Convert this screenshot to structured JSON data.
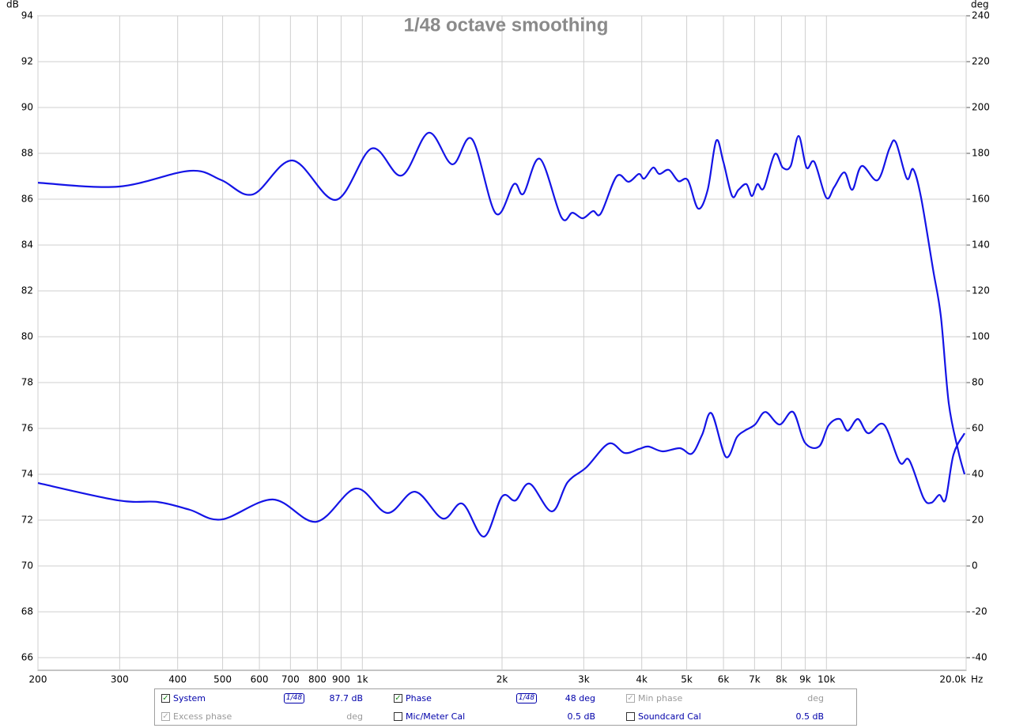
{
  "chart_data": {
    "type": "line",
    "title": "1/48 octave smoothing",
    "y_label": "dB",
    "y2_label": "deg",
    "x_label": "Hz",
    "log_x": true,
    "grid": true,
    "xlim": [
      200,
      20000
    ],
    "xticks": [
      200,
      300,
      400,
      500,
      600,
      700,
      800,
      900,
      {
        "value": 1000,
        "label": "1k"
      },
      {
        "value": 2000,
        "label": "2k"
      },
      {
        "value": 3000,
        "label": "3k"
      },
      {
        "value": 4000,
        "label": "4k"
      },
      {
        "value": 5000,
        "label": "5k"
      },
      {
        "value": 6000,
        "label": "6k"
      },
      {
        "value": 7000,
        "label": "7k"
      },
      {
        "value": 8000,
        "label": "8k"
      },
      {
        "value": 9000,
        "label": "9k"
      },
      {
        "value": 10000,
        "label": "10k"
      },
      {
        "value": 20000,
        "label": "20.0k"
      }
    ],
    "ylim": [
      65.45,
      94
    ],
    "yticks": [
      66,
      68,
      70,
      72,
      74,
      76,
      78,
      80,
      82,
      84,
      86,
      88,
      90,
      92,
      94
    ],
    "y2lim": [
      -45.5,
      240
    ],
    "y2ticks": [
      -40,
      -20,
      0,
      20,
      40,
      60,
      80,
      100,
      120,
      140,
      160,
      180,
      200,
      220,
      240
    ],
    "series": [
      {
        "name": "System",
        "color": "#1414e6",
        "x": [
          200,
          298,
          425,
          497,
          581,
          707,
          877,
          1047,
          1215,
          1389,
          1562,
          1723,
          1938,
          2122,
          2224,
          2414,
          2685,
          2836,
          2984,
          3140,
          3266,
          3532,
          3748,
          3942,
          4051,
          4230,
          4365,
          4576,
          4797,
          5028,
          5292,
          5548,
          5789,
          5998,
          6263,
          6464,
          6722,
          6908,
          7100,
          7328,
          7740,
          8051,
          8374,
          8709,
          9058,
          9420,
          9989,
          10390,
          10930,
          11370,
          11910,
          12890,
          13670,
          14110,
          14900,
          15380,
          15990,
          16960,
          17640,
          18350,
          19230,
          19840
        ],
        "values": [
          86.72,
          86.55,
          87.24,
          86.83,
          86.21,
          87.69,
          85.97,
          88.21,
          87.03,
          88.9,
          87.52,
          88.62,
          85.38,
          86.66,
          86.24,
          87.76,
          85.21,
          85.41,
          85.17,
          85.48,
          85.38,
          87.0,
          86.76,
          87.1,
          86.9,
          87.38,
          87.1,
          87.28,
          86.79,
          86.83,
          85.59,
          86.41,
          88.55,
          87.62,
          86.14,
          86.41,
          86.66,
          86.14,
          86.66,
          86.48,
          87.97,
          87.38,
          87.45,
          88.76,
          87.38,
          87.62,
          86.07,
          86.52,
          87.17,
          86.41,
          87.45,
          86.83,
          88.21,
          88.48,
          86.9,
          87.31,
          86.07,
          82.97,
          80.9,
          77.1,
          75.03,
          74.0
        ]
      },
      {
        "name": "Phase",
        "color": "#1414e6",
        "axis": "y2",
        "x": [
          200,
          298,
          363,
          425,
          497,
          641,
          796,
          968,
          1132,
          1299,
          1490,
          1643,
          1828,
          2000,
          2138,
          2294,
          2561,
          2770,
          3042,
          3396,
          3674,
          3942,
          4132,
          4434,
          4835,
          5128,
          5396,
          5656,
          6070,
          6412,
          6668,
          7018,
          7386,
          7926,
          8474,
          8988,
          9640,
          10110,
          10680,
          11110,
          11690,
          12300,
          13300,
          14390,
          15080,
          16180,
          16830,
          17500,
          18060,
          18780,
          19840
        ],
        "values": [
          36.2,
          28.6,
          27.9,
          24.5,
          20.3,
          29.0,
          19.3,
          33.8,
          23.1,
          32.4,
          20.7,
          27.2,
          12.8,
          30.3,
          28.6,
          35.9,
          23.8,
          36.6,
          43.1,
          53.4,
          49.3,
          51.0,
          52.1,
          50.0,
          51.4,
          49.0,
          57.2,
          66.6,
          47.6,
          56.2,
          59.0,
          61.7,
          67.2,
          61.7,
          67.2,
          53.8,
          52.1,
          61.4,
          64.1,
          59.0,
          64.1,
          57.9,
          61.7,
          45.2,
          46.2,
          29.7,
          27.6,
          31.0,
          29.0,
          48.6,
          57.9
        ]
      }
    ]
  },
  "controls": [
    {
      "label": "System",
      "checked": true,
      "enabled": true,
      "smoothing": "1/48",
      "value": "87.7 dB"
    },
    {
      "label": "Phase",
      "checked": true,
      "enabled": true,
      "smoothing": "1/48",
      "value": "48 deg"
    },
    {
      "label": "Min phase",
      "checked": true,
      "enabled": false,
      "value": "deg"
    },
    {
      "label": "Excess phase",
      "checked": true,
      "enabled": false,
      "value": "deg"
    },
    {
      "label": "Mic/Meter Cal",
      "checked": false,
      "enabled": true,
      "value": "0.5 dB"
    },
    {
      "label": "Soundcard Cal",
      "checked": false,
      "enabled": true,
      "value": "0.5 dB"
    }
  ]
}
